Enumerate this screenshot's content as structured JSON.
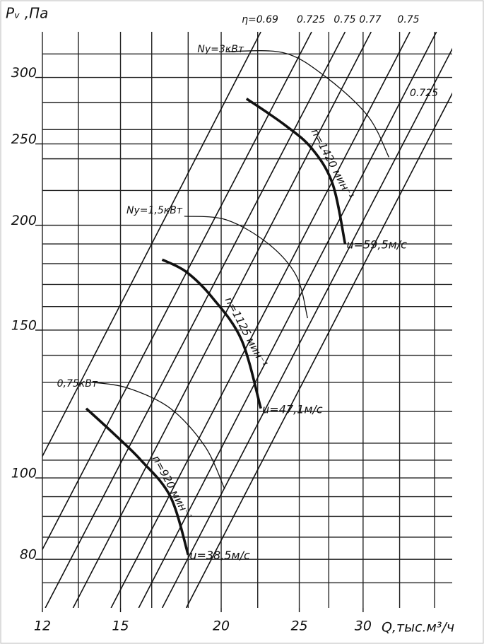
{
  "chart_data": {
    "type": "line",
    "x_label": "Q,тыс.м³/ч",
    "y_label": "Pᵥ ,Па",
    "xscale": "log",
    "yscale": "log",
    "xlim": [
      12,
      38.7
    ],
    "ylim": [
      70,
      340
    ],
    "xticks": [
      12,
      15,
      20,
      25,
      30
    ],
    "yticks": [
      80,
      100,
      150,
      200,
      250,
      300
    ],
    "xgrid": [
      12,
      13.3,
      15,
      16.4,
      18.2,
      20,
      22.2,
      25,
      27.2,
      30,
      33.3,
      36.8
    ],
    "ygrid": [
      75,
      80,
      85,
      90,
      95,
      100,
      105,
      110,
      120,
      130,
      140,
      150,
      160,
      170,
      180,
      190,
      200,
      220,
      240,
      250,
      260,
      280,
      300,
      320
    ],
    "grid": true,
    "color": "#111111",
    "speed_curves": [
      {
        "name": "n=1420 мин⁻¹",
        "x": [
          21.5,
          23.9,
          25.9,
          27.5,
          28.5
        ],
        "values": [
          283,
          264,
          247,
          224,
          190
        ],
        "end_label": "u=59,5м/с"
      },
      {
        "name": "n=1125 мин⁻¹",
        "x": [
          16.9,
          18.1,
          19.5,
          21.2,
          22.4
        ],
        "values": [
          182,
          176,
          164,
          146,
          121
        ],
        "end_label": "u=47,1м/с"
      },
      {
        "name": "n=920 мин⁻¹",
        "x": [
          13.6,
          14.7,
          15.9,
          17.3,
          18.2
        ],
        "values": [
          121,
          113,
          105,
          95,
          81
        ],
        "end_label": "u=38,5м/с"
      }
    ],
    "power_curves": [
      {
        "name": "Nу=3кВт",
        "x": [
          20.3,
          23.9,
          26.9,
          30.4,
          32.3
        ],
        "values": [
          322,
          321,
          301,
          270,
          241
        ]
      },
      {
        "name": "Nу=1,5кВт",
        "x": [
          18.0,
          20.3,
          22.9,
          24.8,
          25.6
        ],
        "values": [
          205,
          203,
          190,
          174,
          155
        ]
      },
      {
        "name": "0,75кВт",
        "x": [
          13.8,
          15.3,
          17.3,
          19.1,
          20.2
        ],
        "values": [
          130,
          128,
          121,
          109,
          97
        ]
      }
    ],
    "efficiency_lines": [
      {
        "name": "η=0.69",
        "x": [
          9.6,
          22.4
        ],
        "values": [
          70,
          340
        ]
      },
      {
        "name": "0.725",
        "x": [
          11.0,
          25.9
        ],
        "values": [
          70,
          340
        ]
      },
      {
        "name": "0.75",
        "x": [
          12.1,
          28.5
        ],
        "values": [
          70,
          340
        ]
      },
      {
        "name": "0.77",
        "x": [
          13.1,
          30.7
        ],
        "values": [
          70,
          340
        ]
      },
      {
        "name": "0.75",
        "x": [
          14.6,
          34.3
        ],
        "values": [
          70,
          340
        ]
      },
      {
        "x": [
          15.8,
          37.0
        ],
        "values": [
          70,
          340
        ]
      },
      {
        "x": [
          16.9,
          39.7
        ],
        "values": [
          70,
          340
        ]
      },
      {
        "name": "0.725",
        "x": [
          18.1,
          42.4
        ],
        "values": [
          70,
          340
        ]
      }
    ]
  }
}
